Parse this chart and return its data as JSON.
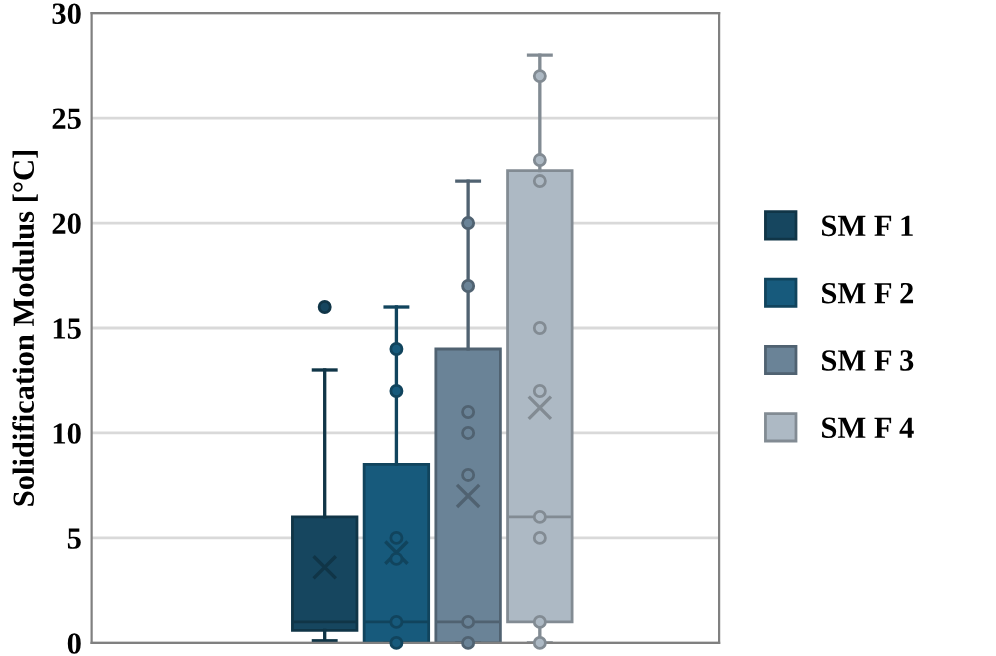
{
  "chart_data": {
    "type": "box",
    "ylabel": "Solidification Modulus [°C]",
    "categories": [
      null
    ],
    "ylim": [
      0,
      30
    ],
    "yticks": [
      0,
      5,
      10,
      15,
      20,
      25,
      30
    ],
    "grid": "y",
    "legend": "right",
    "tick_labels": "y",
    "series": [
      {
        "name": "SM F 1",
        "color": "#16465f",
        "boxes": [
          {
            "low": 0.1,
            "q1": 0.6,
            "median": 1,
            "q3": 6,
            "high": 13,
            "mean": 3.6,
            "outliers": [
              16
            ]
          }
        ]
      },
      {
        "name": "SM F 2",
        "color": "#175a7c",
        "boxes": [
          {
            "low": 0,
            "q1": 0,
            "median": 1,
            "q3": 8.5,
            "high": 16,
            "mean": 4.3,
            "outliers": [
              0,
              1,
              4,
              5,
              12,
              14
            ]
          }
        ]
      },
      {
        "name": "SM F 3",
        "color": "#6a8397",
        "boxes": [
          {
            "low": 0,
            "q1": 0,
            "median": 1,
            "q3": 14,
            "high": 22,
            "mean": 7,
            "outliers": [
              0,
              1,
              8,
              10,
              11,
              17,
              20
            ]
          }
        ]
      },
      {
        "name": "SM F 4",
        "color": "#adb9c4",
        "boxes": [
          {
            "low": 0,
            "q1": 1,
            "median": 6,
            "q3": 22.5,
            "high": 28,
            "mean": 11.2,
            "outliers": [
              0,
              1,
              5,
              6,
              12,
              15,
              22,
              23,
              27
            ]
          }
        ]
      }
    ]
  }
}
